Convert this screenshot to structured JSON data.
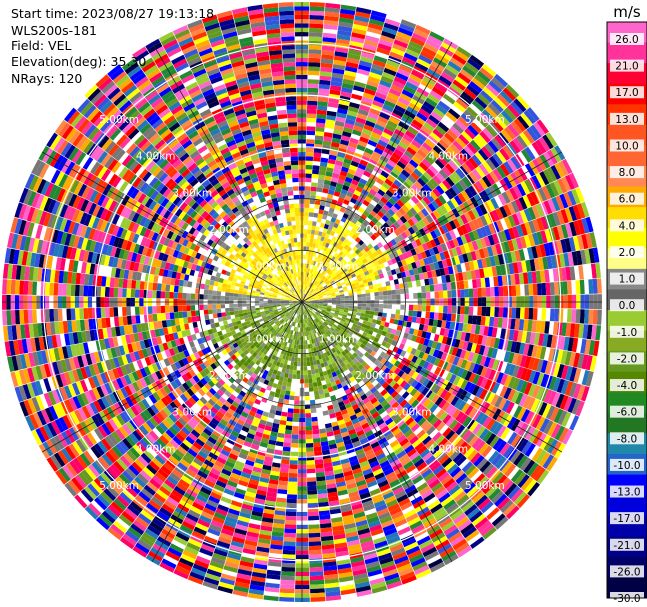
{
  "info": {
    "start_time": "Start time: 2023/08/27 19:13:18",
    "instrument": "WLS200s-181",
    "field": "Field: VEL",
    "elevation": "Elevation(deg): 35.30",
    "nrays": "NRays: 120"
  },
  "chart_data": {
    "type": "polar-ppi",
    "field": "VEL",
    "units": "m/s",
    "nrays": 120,
    "range_rings_km": [
      {
        "label": "1.00km",
        "km": 1
      },
      {
        "label": "2.00km",
        "km": 2
      },
      {
        "label": "3.00km",
        "km": 3
      },
      {
        "label": "4.00km",
        "km": 4
      },
      {
        "label": "5.00km",
        "km": 5
      }
    ],
    "max_range_km": 5.8,
    "colorbar": {
      "unit_label": "m/s",
      "ticks": [
        "26.0",
        "21.0",
        "17.0",
        "13.0",
        "10.0",
        "8.0",
        "6.0",
        "4.0",
        "2.0",
        "1.0",
        "0.0",
        "-1.0",
        "-2.0",
        "-4.0",
        "-6.0",
        "-8.0",
        "-10.0",
        "-13.0",
        "-17.0",
        "-21.0",
        "-26.0",
        "-30.0"
      ],
      "colors": [
        "#ff3399",
        "#ff66cc",
        "#ff0033",
        "#ff2222",
        "#ff4400",
        "#ff6633",
        "#ff7755",
        "#ff8844",
        "#ffaa00",
        "#ffcc00",
        "#ffff00",
        "#ffff66",
        "#777777",
        "#8a9a8a",
        "#99cc33",
        "#66aa22",
        "#558800",
        "#228822",
        "#227733",
        "#2288aa",
        "#2266cc",
        "#1155ee",
        "#0000ff",
        "#0000cc",
        "#000099",
        "#000066",
        "#ccccff",
        "#110044"
      ]
    },
    "colors_in_order_low_to_high": [
      "#000044",
      "#000088",
      "#0000cc",
      "#0000ff",
      "#3355dd",
      "#2277bb",
      "#228833",
      "#669922",
      "#99cc33",
      "#777777",
      "#999999",
      "#ffff33",
      "#ffdd00",
      "#ffaa00",
      "#ff8844",
      "#ff6633",
      "#ff3300",
      "#ff0000",
      "#ff3399",
      "#ff66cc"
    ]
  }
}
